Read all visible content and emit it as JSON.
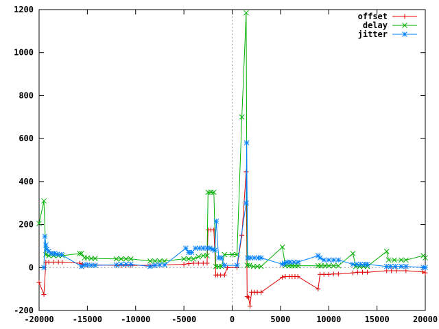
{
  "chart_data": {
    "type": "line",
    "title": "",
    "xlabel": "",
    "ylabel": "",
    "xlim": [
      -20000,
      20000
    ],
    "ylim": [
      -200,
      1200
    ],
    "xticks": [
      -20000,
      -15000,
      -10000,
      -5000,
      0,
      5000,
      10000,
      15000,
      20000
    ],
    "yticks": [
      -200,
      0,
      200,
      400,
      600,
      800,
      1000,
      1200
    ],
    "xtick_labels": [
      "-20000",
      "-15000",
      "-10000",
      "-5000",
      "0",
      "5000",
      "10000",
      "15000",
      "20000"
    ],
    "ytick_labels": [
      "-200",
      "0",
      "200",
      "400",
      "600",
      "800",
      "1000",
      "1200"
    ],
    "grid": false,
    "zero_axes": "dotted",
    "legend_position": "top-right",
    "series": [
      {
        "name": "offset",
        "color": "#e00000",
        "marker": "plus",
        "points": [
          [
            -20000,
            -70
          ],
          [
            -19500,
            -125
          ],
          [
            -19300,
            25
          ],
          [
            -19000,
            25
          ],
          [
            -18500,
            25
          ],
          [
            -18000,
            25
          ],
          [
            -17600,
            25
          ],
          [
            -15800,
            20
          ],
          [
            -15500,
            15
          ],
          [
            -15000,
            12
          ],
          [
            -14600,
            12
          ],
          [
            -14200,
            12
          ],
          [
            -12000,
            10
          ],
          [
            -11500,
            10
          ],
          [
            -11000,
            10
          ],
          [
            -10500,
            10
          ],
          [
            -8500,
            10
          ],
          [
            -8000,
            10
          ],
          [
            -7500,
            12
          ],
          [
            -7000,
            12
          ],
          [
            -5000,
            15
          ],
          [
            -4500,
            18
          ],
          [
            -4000,
            20
          ],
          [
            -3500,
            20
          ],
          [
            -3000,
            20
          ],
          [
            -2600,
            20
          ],
          [
            -2500,
            175
          ],
          [
            -2200,
            175
          ],
          [
            -1900,
            175
          ],
          [
            -1700,
            -35
          ],
          [
            -1500,
            -35
          ],
          [
            -1200,
            -35
          ],
          [
            -800,
            -35
          ],
          [
            -500,
            0
          ],
          [
            500,
            0
          ],
          [
            1000,
            150
          ],
          [
            1450,
            445
          ],
          [
            1550,
            -135
          ],
          [
            1700,
            -140
          ],
          [
            1850,
            -180
          ],
          [
            2000,
            -115
          ],
          [
            2300,
            -115
          ],
          [
            2600,
            -115
          ],
          [
            3000,
            -115
          ],
          [
            5200,
            -45
          ],
          [
            5500,
            -42
          ],
          [
            5900,
            -42
          ],
          [
            6200,
            -42
          ],
          [
            6500,
            -42
          ],
          [
            6800,
            -42
          ],
          [
            8900,
            -100
          ],
          [
            9100,
            -32
          ],
          [
            9500,
            -32
          ],
          [
            10000,
            -32
          ],
          [
            10500,
            -30
          ],
          [
            11000,
            -30
          ],
          [
            12500,
            -25
          ],
          [
            13000,
            -22
          ],
          [
            13500,
            -22
          ],
          [
            14000,
            -22
          ],
          [
            16000,
            -15
          ],
          [
            16500,
            -15
          ],
          [
            17000,
            -15
          ],
          [
            18000,
            -15
          ],
          [
            19700,
            -20
          ],
          [
            20000,
            -25
          ]
        ]
      },
      {
        "name": "delay",
        "color": "#00b000",
        "marker": "cross",
        "points": [
          [
            -20000,
            205
          ],
          [
            -19500,
            310
          ],
          [
            -19300,
            60
          ],
          [
            -19000,
            55
          ],
          [
            -18500,
            55
          ],
          [
            -18000,
            55
          ],
          [
            -17600,
            55
          ],
          [
            -15800,
            65
          ],
          [
            -15600,
            65
          ],
          [
            -15300,
            45
          ],
          [
            -15000,
            45
          ],
          [
            -14600,
            42
          ],
          [
            -14200,
            42
          ],
          [
            -12000,
            40
          ],
          [
            -11500,
            40
          ],
          [
            -11000,
            40
          ],
          [
            -10500,
            40
          ],
          [
            -8500,
            30
          ],
          [
            -8000,
            30
          ],
          [
            -7500,
            30
          ],
          [
            -7000,
            30
          ],
          [
            -5000,
            40
          ],
          [
            -4500,
            40
          ],
          [
            -4000,
            40
          ],
          [
            -3500,
            50
          ],
          [
            -3000,
            55
          ],
          [
            -2600,
            55
          ],
          [
            -2500,
            350
          ],
          [
            -2200,
            350
          ],
          [
            -1900,
            350
          ],
          [
            -1700,
            5
          ],
          [
            -1400,
            5
          ],
          [
            -1100,
            5
          ],
          [
            -800,
            60
          ],
          [
            0,
            60
          ],
          [
            500,
            60
          ],
          [
            1000,
            700
          ],
          [
            1450,
            1185
          ],
          [
            1550,
            10
          ],
          [
            1800,
            10
          ],
          [
            2200,
            5
          ],
          [
            2600,
            5
          ],
          [
            3000,
            5
          ],
          [
            5200,
            95
          ],
          [
            5500,
            8
          ],
          [
            5900,
            8
          ],
          [
            6200,
            8
          ],
          [
            6500,
            8
          ],
          [
            6800,
            8
          ],
          [
            8900,
            8
          ],
          [
            9200,
            8
          ],
          [
            9600,
            8
          ],
          [
            10000,
            8
          ],
          [
            10500,
            8
          ],
          [
            11000,
            8
          ],
          [
            12500,
            65
          ],
          [
            12800,
            5
          ],
          [
            13200,
            5
          ],
          [
            13600,
            5
          ],
          [
            14000,
            5
          ],
          [
            16000,
            75
          ],
          [
            16200,
            35
          ],
          [
            16800,
            35
          ],
          [
            17500,
            35
          ],
          [
            18000,
            35
          ],
          [
            19800,
            55
          ],
          [
            20000,
            45
          ]
        ]
      },
      {
        "name": "jitter",
        "color": "#0080ff",
        "marker": "star",
        "points": [
          [
            -19500,
            0
          ],
          [
            -19400,
            145
          ],
          [
            -19300,
            105
          ],
          [
            -19200,
            85
          ],
          [
            -19000,
            75
          ],
          [
            -18700,
            65
          ],
          [
            -18400,
            65
          ],
          [
            -18100,
            62
          ],
          [
            -17700,
            60
          ],
          [
            -15600,
            5
          ],
          [
            -15300,
            12
          ],
          [
            -15000,
            12
          ],
          [
            -14600,
            10
          ],
          [
            -14200,
            10
          ],
          [
            -12000,
            12
          ],
          [
            -11500,
            15
          ],
          [
            -11000,
            15
          ],
          [
            -10500,
            15
          ],
          [
            -8500,
            5
          ],
          [
            -8000,
            10
          ],
          [
            -7500,
            12
          ],
          [
            -7000,
            12
          ],
          [
            -4800,
            90
          ],
          [
            -4500,
            70
          ],
          [
            -4200,
            70
          ],
          [
            -3800,
            90
          ],
          [
            -3400,
            90
          ],
          [
            -3000,
            90
          ],
          [
            -2600,
            90
          ],
          [
            -2300,
            90
          ],
          [
            -2000,
            85
          ],
          [
            -1800,
            80
          ],
          [
            -1650,
            215
          ],
          [
            -1400,
            45
          ],
          [
            -1100,
            45
          ],
          [
            -800,
            10
          ],
          [
            500,
            10
          ],
          [
            1450,
            300
          ],
          [
            1500,
            580
          ],
          [
            1600,
            45
          ],
          [
            1900,
            45
          ],
          [
            2300,
            45
          ],
          [
            2700,
            45
          ],
          [
            3000,
            45
          ],
          [
            5200,
            15
          ],
          [
            5400,
            20
          ],
          [
            5700,
            25
          ],
          [
            6000,
            25
          ],
          [
            6400,
            25
          ],
          [
            6800,
            25
          ],
          [
            8900,
            55
          ],
          [
            9100,
            45
          ],
          [
            9500,
            35
          ],
          [
            10000,
            35
          ],
          [
            10500,
            35
          ],
          [
            11000,
            35
          ],
          [
            12500,
            15
          ],
          [
            12900,
            15
          ],
          [
            13300,
            15
          ],
          [
            13700,
            15
          ],
          [
            14000,
            15
          ],
          [
            16000,
            5
          ],
          [
            16400,
            5
          ],
          [
            16900,
            5
          ],
          [
            17500,
            5
          ],
          [
            18000,
            5
          ],
          [
            19800,
            0
          ],
          [
            20000,
            0
          ]
        ]
      }
    ]
  }
}
